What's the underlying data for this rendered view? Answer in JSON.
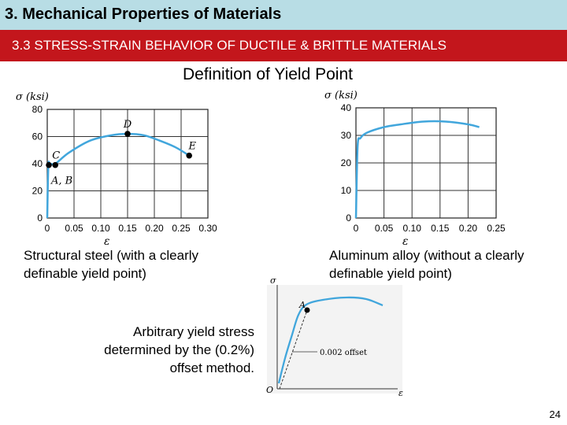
{
  "header": {
    "title": "3. Mechanical Properties of Materials",
    "subtitle": "3.3 STRESS-STRAIN BEHAVIOR OF DUCTILE & BRITTLE MATERIALS"
  },
  "slide": {
    "heading": "Definition of Yield Point",
    "caption_left": "Structural steel (with a clearly definable yield point)",
    "caption_right": "Aluminum alloy (without a clearly definable yield point)",
    "caption_offset": "Arbitrary yield stress determined by the (0.2%) offset method.",
    "page_number": "24"
  },
  "colors": {
    "curve": "#41a6dc",
    "header_bg": "#b8dde5",
    "subheader_bg": "#c3161c"
  },
  "chart_data": [
    {
      "type": "line",
      "ylabel": "σ (ksi)",
      "xlabel": "ε",
      "xlim": [
        0,
        0.3
      ],
      "ylim": [
        0,
        80
      ],
      "x_ticks": [
        "0",
        "0.05",
        "0.10",
        "0.15",
        "0.20",
        "0.25",
        "0.30"
      ],
      "y_ticks": [
        "0",
        "20",
        "40",
        "60",
        "80"
      ],
      "grid": true,
      "series": [
        {
          "x": [
            0,
            0.002,
            0.005,
            0.015,
            0.04,
            0.08,
            0.12,
            0.15,
            0.18,
            0.21,
            0.24,
            0.265
          ],
          "y": [
            0,
            38,
            40,
            40,
            48,
            57,
            61,
            62,
            61,
            57,
            52,
            46
          ]
        }
      ],
      "points": [
        {
          "label": "A, B",
          "x": 0.003,
          "y": 39
        },
        {
          "label": "C",
          "x": 0.015,
          "y": 39
        },
        {
          "label": "D",
          "x": 0.15,
          "y": 62
        },
        {
          "label": "E",
          "x": 0.265,
          "y": 46
        }
      ]
    },
    {
      "type": "line",
      "ylabel": "σ (ksi)",
      "xlabel": "ε",
      "xlim": [
        0,
        0.25
      ],
      "ylim": [
        0,
        40
      ],
      "x_ticks": [
        "0",
        "0.05",
        "0.10",
        "0.15",
        "0.20",
        "0.25"
      ],
      "y_ticks": [
        "0",
        "10",
        "20",
        "30",
        "40"
      ],
      "grid": true,
      "series": [
        {
          "x": [
            0,
            0.003,
            0.008,
            0.02,
            0.05,
            0.08,
            0.12,
            0.16,
            0.2,
            0.22
          ],
          "y": [
            0,
            26,
            29,
            31,
            33,
            34,
            35,
            35,
            34,
            33
          ]
        }
      ]
    },
    {
      "type": "line",
      "ylabel": "σ",
      "xlabel": "ε",
      "origin_label": "O",
      "offset_label": "0.002 offset",
      "point_label": "A"
    }
  ]
}
